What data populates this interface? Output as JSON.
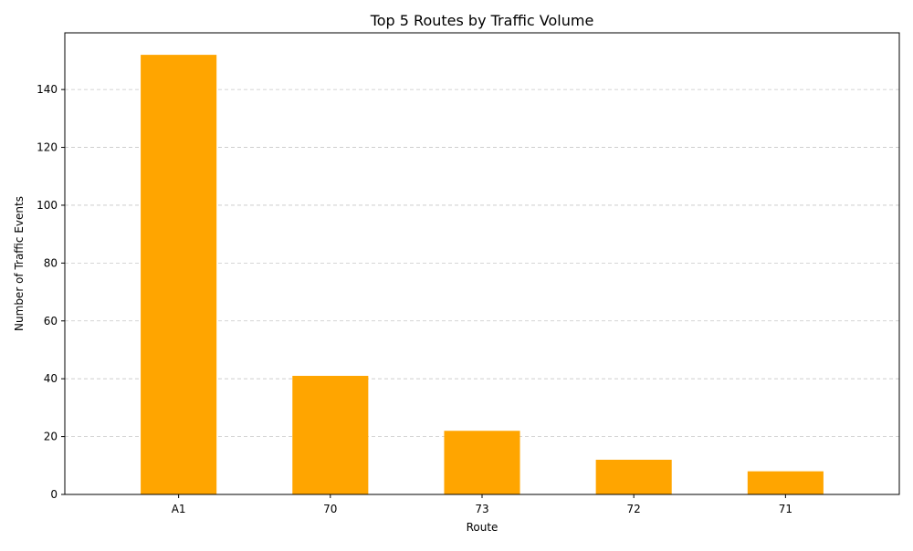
{
  "chart_data": {
    "type": "bar",
    "title": "Top 5 Routes by Traffic Volume",
    "xlabel": "Route",
    "ylabel": "Number of Traffic Events",
    "categories": [
      "A1",
      "70",
      "73",
      "72",
      "71"
    ],
    "values": [
      152,
      41,
      22,
      12,
      8
    ],
    "ylim": [
      0,
      159.6
    ],
    "yticks": [
      0,
      20,
      40,
      60,
      80,
      100,
      120,
      140
    ],
    "grid": {
      "y": true,
      "x": false,
      "style": "dashed"
    },
    "bar_color": "#FFA500"
  }
}
